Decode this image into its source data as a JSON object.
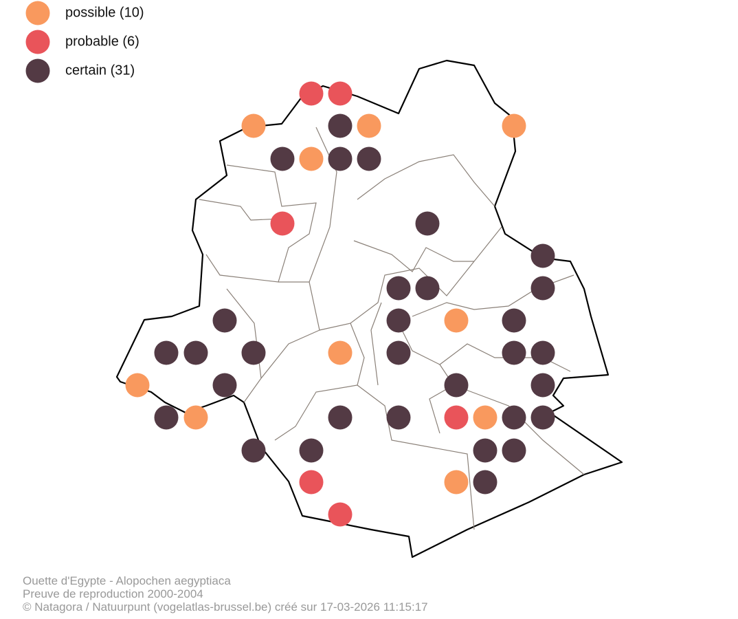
{
  "legend": [
    {
      "label": "possible (10)",
      "color": "#f9995e"
    },
    {
      "label": "probable (6)",
      "color": "#e9545a"
    },
    {
      "label": "certain (31)",
      "color": "#533a44"
    }
  ],
  "footer": {
    "species": "Ouette d'Egypte - Alopochen aegyptiaca",
    "period": "Preuve de reproduction 2000-2004",
    "credit": "© Natagora / Natuurpunt (vogelatlas-brussel.be) créé sur 17-03-2026 11:15:17"
  }
}
